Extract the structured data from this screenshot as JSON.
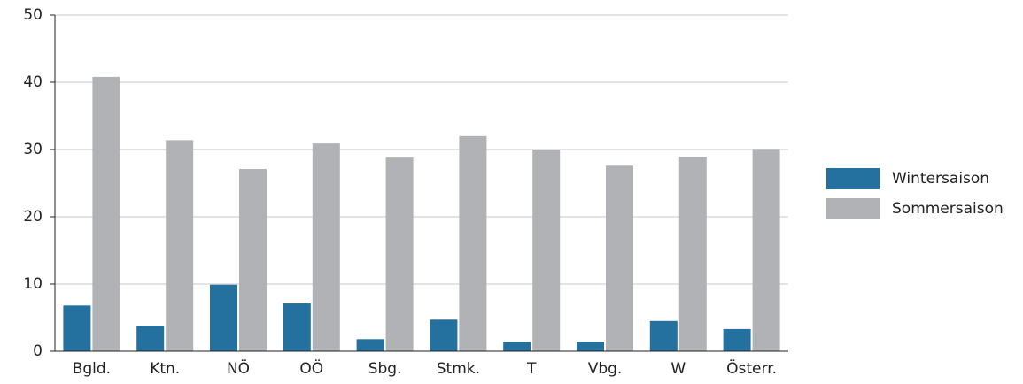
{
  "chart_data": {
    "type": "bar",
    "categories": [
      "Bgld.",
      "Ktn.",
      "NÖ",
      "OÖ",
      "Sbg.",
      "Stmk.",
      "T",
      "Vbg.",
      "W",
      "Österr."
    ],
    "series": [
      {
        "name": "Wintersaison",
        "color": "#24719f",
        "values": [
          6.8,
          3.8,
          9.9,
          7.1,
          1.8,
          4.7,
          1.4,
          1.4,
          4.5,
          3.3
        ]
      },
      {
        "name": "Sommersaison",
        "color": "#b1b2b6",
        "values": [
          40.8,
          31.4,
          27.1,
          30.9,
          28.8,
          32.0,
          30.0,
          27.6,
          28.9,
          30.1
        ]
      }
    ],
    "ylim": [
      0,
      50
    ],
    "yticks": [
      0,
      10,
      20,
      30,
      40,
      50
    ],
    "grid": true,
    "legend": "right"
  }
}
